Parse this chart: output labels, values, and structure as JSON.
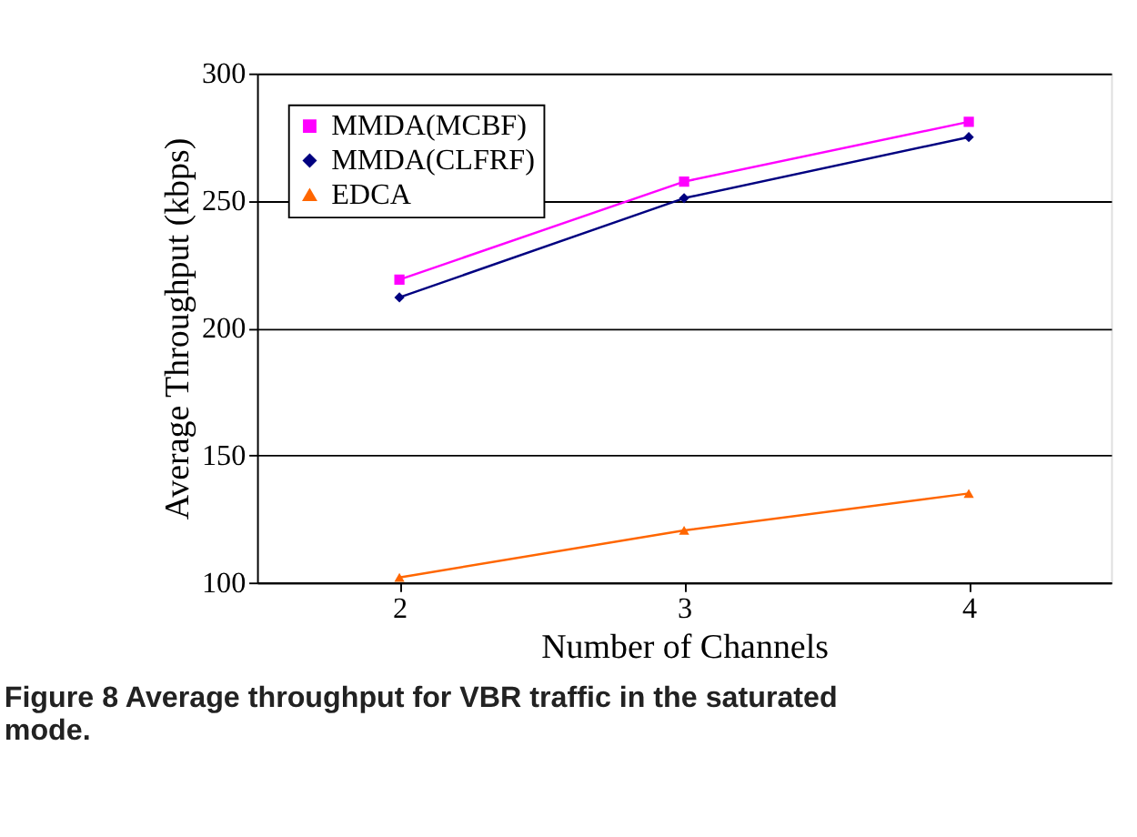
{
  "chart_data": {
    "type": "line",
    "xlabel": "Number of Channels",
    "ylabel": "Average Throughput (kbps)",
    "categories": [
      "2",
      "3",
      "4"
    ],
    "series": [
      {
        "name": "MMDA(MCBF)",
        "color": "#ff00ff",
        "marker": "square",
        "values": [
          219,
          257.5,
          281
        ]
      },
      {
        "name": "MMDA(CLFRF)",
        "color": "#000080",
        "marker": "diamond",
        "values": [
          212,
          251,
          275
        ]
      },
      {
        "name": "EDCA",
        "color": "#ff6600",
        "marker": "triangle",
        "values": [
          102,
          120.5,
          135
        ]
      }
    ],
    "ylim": [
      100,
      300
    ],
    "yticks": [
      100,
      150,
      200,
      250,
      300
    ],
    "grid": "y",
    "legend": "top left",
    "annotations": [
      "Figure 8 Average throughput for VBR traffic in the saturated mode."
    ]
  }
}
